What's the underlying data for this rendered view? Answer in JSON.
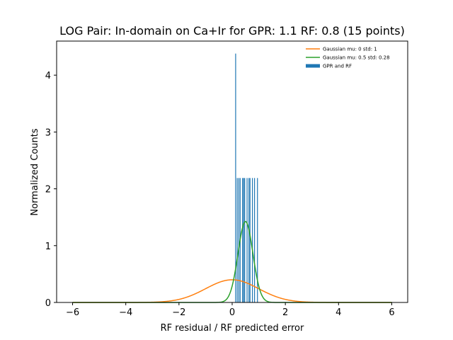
{
  "chart_data": {
    "type": "bar",
    "title": "LOG Pair: In-domain on Ca+Ir for GPR: 1.1 RF: 0.8 (15 points)",
    "xlabel": "RF residual / RF predicted error",
    "ylabel": "Normalized Counts",
    "xlim": [
      -6.6,
      6.6
    ],
    "ylim": [
      0,
      4.6
    ],
    "xticks": [
      -6,
      -4,
      -2,
      0,
      2,
      4,
      6
    ],
    "xtick_labels": [
      "−6",
      "−4",
      "−2",
      "0",
      "2",
      "4",
      "6"
    ],
    "yticks": [
      0,
      1,
      2,
      3,
      4
    ],
    "ytick_labels": [
      "0",
      "1",
      "2",
      "3",
      "4"
    ],
    "grid": false,
    "legend_position": "top-right",
    "histogram": {
      "name": "GPR and RF",
      "color": "#1f77b4",
      "bars": [
        {
          "x": 0.13,
          "height": 4.38
        },
        {
          "x": 0.19,
          "height": 2.19
        },
        {
          "x": 0.25,
          "height": 2.19
        },
        {
          "x": 0.3,
          "height": 2.19
        },
        {
          "x": 0.39,
          "height": 2.19
        },
        {
          "x": 0.43,
          "height": 2.19
        },
        {
          "x": 0.47,
          "height": 2.19
        },
        {
          "x": 0.56,
          "height": 2.19
        },
        {
          "x": 0.63,
          "height": 2.19
        },
        {
          "x": 0.67,
          "height": 2.19
        },
        {
          "x": 0.76,
          "height": 2.19
        },
        {
          "x": 0.84,
          "height": 2.19
        },
        {
          "x": 0.95,
          "height": 2.19
        }
      ],
      "bar_width": 0.03
    },
    "series": [
      {
        "name": "Gaussian mu: 0 std: 1",
        "type": "line",
        "color": "#ff7f0e",
        "mu": 0,
        "std": 1,
        "x_range": [
          -6,
          6
        ]
      },
      {
        "name": "Gaussian mu: 0.5 std: 0.28",
        "type": "line",
        "color": "#2ca02c",
        "mu": 0.5,
        "std": 0.28,
        "x_range": [
          -6,
          6
        ]
      }
    ]
  }
}
